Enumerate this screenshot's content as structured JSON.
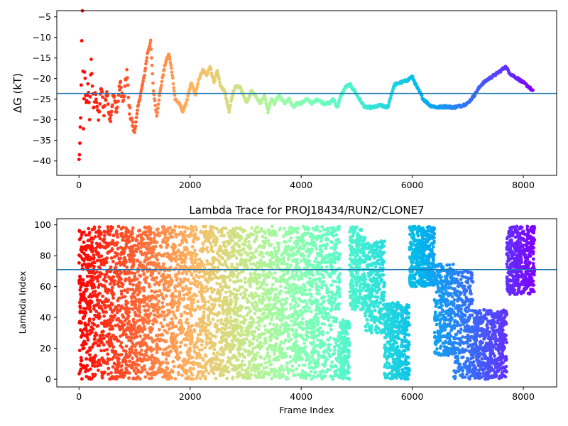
{
  "chart_data": [
    {
      "type": "scatter",
      "title": "",
      "xlabel": "",
      "ylabel": "ΔG (kT)",
      "xlim": [
        -400,
        8600
      ],
      "ylim": [
        -43.5,
        -3.5
      ],
      "xticks": [
        0,
        2000,
        4000,
        6000,
        8000
      ],
      "yticks": [
        -40,
        -35,
        -30,
        -25,
        -20,
        -15,
        -10,
        -5
      ],
      "colormap": "rainbow (red → orange → green → cyan → blue → violet with increasing frame)",
      "hline": {
        "y": -23.6,
        "color": "#1f77b4"
      },
      "trace_points": [
        [
          0,
          -40
        ],
        [
          15,
          -36
        ],
        [
          30,
          -30
        ],
        [
          40,
          -22
        ],
        [
          50,
          -10
        ],
        [
          60,
          -4.5
        ],
        [
          80,
          -33
        ],
        [
          100,
          -18
        ],
        [
          130,
          -26
        ],
        [
          160,
          -22
        ],
        [
          190,
          -29
        ],
        [
          220,
          -15
        ],
        [
          260,
          -28
        ],
        [
          300,
          -23
        ],
        [
          350,
          -30
        ],
        [
          400,
          -22
        ],
        [
          450,
          -28
        ],
        [
          500,
          -23
        ],
        [
          560,
          -30
        ],
        [
          620,
          -24
        ],
        [
          680,
          -28
        ],
        [
          740,
          -21
        ],
        [
          800,
          -26
        ],
        [
          860,
          -18
        ],
        [
          900,
          -27
        ],
        [
          960,
          -31
        ],
        [
          1000,
          -33
        ],
        [
          1060,
          -27
        ],
        [
          1120,
          -23
        ],
        [
          1180,
          -19
        ],
        [
          1230,
          -14
        ],
        [
          1290,
          -11
        ],
        [
          1340,
          -23
        ],
        [
          1400,
          -29
        ],
        [
          1440,
          -25
        ],
        [
          1500,
          -20
        ],
        [
          1560,
          -16
        ],
        [
          1620,
          -14
        ],
        [
          1680,
          -19
        ],
        [
          1730,
          -25
        ],
        [
          1800,
          -26
        ],
        [
          1870,
          -28
        ],
        [
          1950,
          -25
        ],
        [
          2020,
          -21
        ],
        [
          2100,
          -24
        ],
        [
          2160,
          -20
        ],
        [
          2230,
          -18
        ],
        [
          2300,
          -19
        ],
        [
          2360,
          -17
        ],
        [
          2430,
          -21
        ],
        [
          2490,
          -18
        ],
        [
          2550,
          -22
        ],
        [
          2620,
          -23
        ],
        [
          2700,
          -28
        ],
        [
          2760,
          -24
        ],
        [
          2820,
          -22
        ],
        [
          2900,
          -22
        ],
        [
          2960,
          -24
        ],
        [
          3020,
          -26
        ],
        [
          3100,
          -23
        ],
        [
          3180,
          -24
        ],
        [
          3260,
          -26
        ],
        [
          3340,
          -24
        ],
        [
          3400,
          -28
        ],
        [
          3460,
          -25
        ],
        [
          3520,
          -26
        ],
        [
          3600,
          -24
        ],
        [
          3700,
          -26
        ],
        [
          3780,
          -25
        ],
        [
          3850,
          -27
        ],
        [
          3920,
          -26
        ],
        [
          4000,
          -26
        ],
        [
          4100,
          -25
        ],
        [
          4200,
          -26
        ],
        [
          4300,
          -25
        ],
        [
          4400,
          -26
        ],
        [
          4500,
          -26
        ],
        [
          4580,
          -25
        ],
        [
          4650,
          -27
        ],
        [
          4720,
          -24
        ],
        [
          4800,
          -22
        ],
        [
          4880,
          -21.5
        ],
        [
          4960,
          -23
        ],
        [
          5050,
          -25
        ],
        [
          5150,
          -27
        ],
        [
          5300,
          -27
        ],
        [
          5420,
          -26.5
        ],
        [
          5560,
          -27
        ],
        [
          5620,
          -24
        ],
        [
          5680,
          -21.5
        ],
        [
          5780,
          -21
        ],
        [
          5900,
          -20.5
        ],
        [
          6000,
          -19.5
        ],
        [
          6080,
          -22
        ],
        [
          6200,
          -25
        ],
        [
          6320,
          -26.5
        ],
        [
          6450,
          -27
        ],
        [
          6600,
          -26.8
        ],
        [
          6750,
          -27
        ],
        [
          6900,
          -26.5
        ],
        [
          7000,
          -26
        ],
        [
          7120,
          -24
        ],
        [
          7240,
          -21.5
        ],
        [
          7380,
          -20
        ],
        [
          7500,
          -19
        ],
        [
          7600,
          -18
        ],
        [
          7680,
          -17.2
        ],
        [
          7780,
          -19
        ],
        [
          7900,
          -20
        ],
        [
          8000,
          -21
        ],
        [
          8100,
          -22
        ],
        [
          8180,
          -23.2
        ]
      ]
    },
    {
      "type": "scatter",
      "title": "Lambda Trace for PROJ18434/RUN2/CLONE7",
      "xlabel": "Frame Index",
      "ylabel": "Lambda Index",
      "xlim": [
        -400,
        8600
      ],
      "ylim": [
        -5,
        104
      ],
      "xticks": [
        0,
        2000,
        4000,
        6000,
        8000
      ],
      "yticks": [
        0,
        20,
        40,
        60,
        80,
        100
      ],
      "colormap": "rainbow (red → orange → green → cyan → blue → violet with increasing frame)",
      "hline": {
        "y": 71,
        "color": "#1f77b4"
      },
      "frames": 8200,
      "lambda_range": [
        0,
        99
      ],
      "bands": [
        [
          0,
          30,
          0,
          99
        ],
        [
          30,
          130,
          0,
          99
        ],
        [
          130,
          1000,
          0,
          99
        ],
        [
          1000,
          2000,
          0,
          99
        ],
        [
          2000,
          2700,
          0,
          99
        ],
        [
          2700,
          3300,
          0,
          99
        ],
        [
          3300,
          3900,
          0,
          99
        ],
        [
          3900,
          4700,
          0,
          99
        ],
        [
          4700,
          4870,
          0,
          40
        ],
        [
          4870,
          5150,
          45,
          99
        ],
        [
          5150,
          5500,
          30,
          90
        ],
        [
          5500,
          5950,
          0,
          50
        ],
        [
          5950,
          6400,
          60,
          99
        ],
        [
          6400,
          6750,
          15,
          75
        ],
        [
          6750,
          7100,
          0,
          70
        ],
        [
          7100,
          7700,
          0,
          45
        ],
        [
          7700,
          8200,
          55,
          99
        ]
      ]
    }
  ]
}
